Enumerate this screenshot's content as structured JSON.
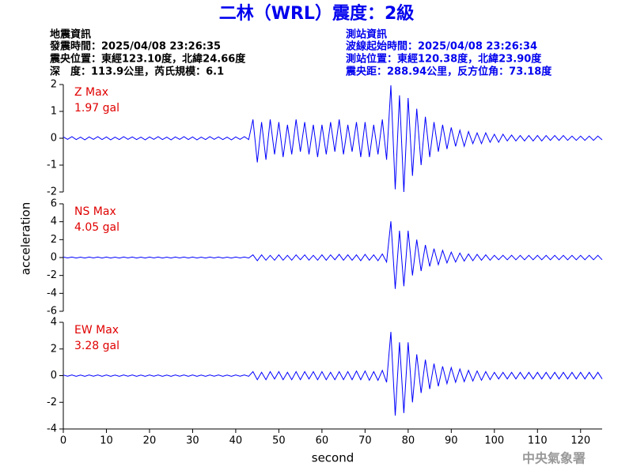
{
  "header": {
    "title": "二林（WRL）震度：2級",
    "left": [
      "地震資訊",
      "發震時間：2025/04/08 23:26:35",
      "震央位置：東經123.10度，北緯24.66度",
      "深　度：113.9公里，芮氏規模：6.1"
    ],
    "right": [
      "測站資訊",
      "波線起始時間：2025/04/08 23:26:34",
      "測站位置：東經120.38度，北緯23.90度",
      "震央距：288.94公里，反方位角：73.18度"
    ],
    "footer": "中央氣象署"
  },
  "chart_data": [
    {
      "type": "line",
      "label": "Z Max",
      "max_label": "1.97 gal",
      "color": "#0000ff",
      "ylim": [
        -2,
        2
      ],
      "yticks": [
        -2,
        -1,
        0,
        1,
        2
      ],
      "xlim": [
        0,
        125
      ],
      "x": [
        0,
        1,
        2,
        3,
        4,
        5,
        6,
        7,
        8,
        9,
        10,
        11,
        12,
        13,
        14,
        15,
        16,
        17,
        18,
        19,
        20,
        21,
        22,
        23,
        24,
        25,
        26,
        27,
        28,
        29,
        30,
        31,
        32,
        33,
        34,
        35,
        36,
        37,
        38,
        39,
        40,
        41,
        42,
        43,
        44,
        45,
        46,
        47,
        48,
        49,
        50,
        51,
        52,
        53,
        54,
        55,
        56,
        57,
        58,
        59,
        60,
        61,
        62,
        63,
        64,
        65,
        66,
        67,
        68,
        69,
        70,
        71,
        72,
        73,
        74,
        75,
        76,
        77,
        78,
        79,
        80,
        81,
        82,
        83,
        84,
        85,
        86,
        87,
        88,
        89,
        90,
        91,
        92,
        93,
        94,
        95,
        96,
        97,
        98,
        99,
        100,
        101,
        102,
        103,
        104,
        105,
        106,
        107,
        108,
        109,
        110,
        111,
        112,
        113,
        114,
        115,
        116,
        117,
        118,
        119,
        120,
        121,
        122,
        123,
        124,
        125
      ],
      "values": [
        0.05,
        -0.04,
        0.06,
        -0.05,
        0.04,
        -0.06,
        0.05,
        -0.04,
        0.06,
        -0.05,
        0.05,
        -0.06,
        0.04,
        -0.05,
        0.06,
        -0.04,
        0.05,
        -0.05,
        0.04,
        -0.06,
        0.05,
        -0.04,
        0.06,
        -0.05,
        0.04,
        -0.06,
        0.05,
        -0.04,
        0.06,
        -0.05,
        0.05,
        -0.06,
        0.04,
        -0.05,
        0.06,
        -0.04,
        0.05,
        -0.05,
        0.04,
        -0.06,
        0.05,
        -0.04,
        0.06,
        -0.05,
        0.7,
        -0.9,
        0.6,
        -0.8,
        0.7,
        -0.6,
        0.6,
        -0.7,
        0.5,
        -0.6,
        0.7,
        -0.5,
        0.6,
        -0.6,
        0.5,
        -0.7,
        0.5,
        -0.6,
        0.6,
        -0.5,
        0.7,
        -0.6,
        0.5,
        -0.5,
        0.6,
        -0.7,
        0.6,
        -0.7,
        0.5,
        -0.6,
        0.7,
        -0.8,
        1.97,
        -1.9,
        1.6,
        -2.0,
        1.5,
        -1.4,
        1.1,
        -1.0,
        0.8,
        -0.7,
        0.6,
        -0.5,
        0.5,
        -0.4,
        0.4,
        -0.3,
        0.3,
        -0.3,
        0.25,
        -0.2,
        0.2,
        -0.2,
        0.2,
        -0.15,
        0.15,
        -0.15,
        0.15,
        -0.1,
        0.12,
        -0.1,
        0.1,
        -0.1,
        0.1,
        -0.1,
        0.1,
        -0.1,
        0.1,
        -0.08,
        0.1,
        -0.08,
        0.1,
        -0.08,
        0.08,
        -0.08,
        0.08,
        -0.08,
        0.08,
        -0.08,
        0.08,
        -0.06
      ]
    },
    {
      "type": "line",
      "label": "NS Max",
      "max_label": "4.05 gal",
      "color": "#0000ff",
      "ylim": [
        -6,
        6
      ],
      "yticks": [
        -6,
        -4,
        -2,
        0,
        2,
        4,
        6
      ],
      "xlim": [
        0,
        125
      ],
      "ylabel": "acceleration",
      "x": [
        0,
        1,
        2,
        3,
        4,
        5,
        6,
        7,
        8,
        9,
        10,
        11,
        12,
        13,
        14,
        15,
        16,
        17,
        18,
        19,
        20,
        21,
        22,
        23,
        24,
        25,
        26,
        27,
        28,
        29,
        30,
        31,
        32,
        33,
        34,
        35,
        36,
        37,
        38,
        39,
        40,
        41,
        42,
        43,
        44,
        45,
        46,
        47,
        48,
        49,
        50,
        51,
        52,
        53,
        54,
        55,
        56,
        57,
        58,
        59,
        60,
        61,
        62,
        63,
        64,
        65,
        66,
        67,
        68,
        69,
        70,
        71,
        72,
        73,
        74,
        75,
        76,
        77,
        78,
        79,
        80,
        81,
        82,
        83,
        84,
        85,
        86,
        87,
        88,
        89,
        90,
        91,
        92,
        93,
        94,
        95,
        96,
        97,
        98,
        99,
        100,
        101,
        102,
        103,
        104,
        105,
        106,
        107,
        108,
        109,
        110,
        111,
        112,
        113,
        114,
        115,
        116,
        117,
        118,
        119,
        120,
        121,
        122,
        123,
        124,
        125
      ],
      "values": [
        0.05,
        -0.04,
        0.05,
        -0.05,
        0.04,
        -0.05,
        0.05,
        -0.04,
        0.05,
        -0.05,
        0.05,
        -0.05,
        0.04,
        -0.05,
        0.05,
        -0.04,
        0.05,
        -0.05,
        0.04,
        -0.05,
        0.05,
        -0.04,
        0.05,
        -0.05,
        0.04,
        -0.05,
        0.05,
        -0.04,
        0.05,
        -0.05,
        0.05,
        -0.05,
        0.04,
        -0.05,
        0.05,
        -0.04,
        0.05,
        -0.05,
        0.04,
        -0.05,
        0.05,
        -0.04,
        0.05,
        -0.05,
        0.3,
        -0.35,
        0.3,
        -0.3,
        0.25,
        -0.3,
        0.3,
        -0.3,
        0.25,
        -0.3,
        0.3,
        -0.25,
        0.3,
        -0.3,
        0.25,
        -0.3,
        0.3,
        -0.3,
        0.3,
        -0.25,
        0.35,
        -0.3,
        0.3,
        -0.3,
        0.3,
        -0.35,
        0.35,
        -0.3,
        0.3,
        -0.35,
        0.4,
        -0.5,
        4.05,
        -3.5,
        3.0,
        -3.2,
        3.0,
        -2.0,
        2.0,
        -1.5,
        1.4,
        -1.0,
        1.0,
        -0.8,
        0.8,
        -0.6,
        0.6,
        -0.5,
        0.5,
        -0.4,
        0.4,
        -0.35,
        0.35,
        -0.3,
        0.3,
        -0.3,
        0.25,
        -0.25,
        0.25,
        -0.25,
        0.25,
        -0.25,
        0.25,
        -0.25,
        0.25,
        -0.25,
        0.25,
        -0.25,
        0.25,
        -0.25,
        0.25,
        -0.25,
        0.25,
        -0.25,
        0.25,
        -0.25,
        0.25,
        -0.25,
        0.25,
        -0.25,
        0.25,
        -0.25
      ]
    },
    {
      "type": "line",
      "label": "EW Max",
      "max_label": "3.28 gal",
      "color": "#0000ff",
      "ylim": [
        -4,
        4
      ],
      "yticks": [
        -4,
        -2,
        0,
        2,
        4
      ],
      "xlim": [
        0,
        125
      ],
      "xticks": [
        0,
        10,
        20,
        30,
        40,
        50,
        60,
        70,
        80,
        90,
        100,
        110,
        120
      ],
      "xlabel": "second",
      "x": [
        0,
        1,
        2,
        3,
        4,
        5,
        6,
        7,
        8,
        9,
        10,
        11,
        12,
        13,
        14,
        15,
        16,
        17,
        18,
        19,
        20,
        21,
        22,
        23,
        24,
        25,
        26,
        27,
        28,
        29,
        30,
        31,
        32,
        33,
        34,
        35,
        36,
        37,
        38,
        39,
        40,
        41,
        42,
        43,
        44,
        45,
        46,
        47,
        48,
        49,
        50,
        51,
        52,
        53,
        54,
        55,
        56,
        57,
        58,
        59,
        60,
        61,
        62,
        63,
        64,
        65,
        66,
        67,
        68,
        69,
        70,
        71,
        72,
        73,
        74,
        75,
        76,
        77,
        78,
        79,
        80,
        81,
        82,
        83,
        84,
        85,
        86,
        87,
        88,
        89,
        90,
        91,
        92,
        93,
        94,
        95,
        96,
        97,
        98,
        99,
        100,
        101,
        102,
        103,
        104,
        105,
        106,
        107,
        108,
        109,
        110,
        111,
        112,
        113,
        114,
        115,
        116,
        117,
        118,
        119,
        120,
        121,
        122,
        123,
        124,
        125
      ],
      "values": [
        0.05,
        -0.04,
        0.05,
        -0.05,
        0.04,
        -0.05,
        0.05,
        -0.04,
        0.05,
        -0.05,
        0.05,
        -0.05,
        0.04,
        -0.05,
        0.05,
        -0.04,
        0.05,
        -0.05,
        0.04,
        -0.05,
        0.05,
        -0.04,
        0.05,
        -0.05,
        0.04,
        -0.05,
        0.05,
        -0.04,
        0.05,
        -0.05,
        0.05,
        -0.05,
        0.04,
        -0.05,
        0.05,
        -0.04,
        0.05,
        -0.05,
        0.04,
        -0.05,
        0.05,
        -0.04,
        0.05,
        -0.05,
        0.3,
        -0.3,
        0.25,
        -0.3,
        0.3,
        -0.25,
        0.3,
        -0.3,
        0.25,
        -0.3,
        0.3,
        -0.3,
        0.3,
        -0.25,
        0.3,
        -0.3,
        0.3,
        -0.3,
        0.25,
        -0.3,
        0.3,
        -0.3,
        0.3,
        -0.3,
        0.35,
        -0.3,
        0.35,
        -0.35,
        0.3,
        -0.35,
        0.4,
        -0.5,
        3.28,
        -3.0,
        2.5,
        -2.8,
        2.5,
        -2.0,
        1.6,
        -1.3,
        1.2,
        -1.0,
        0.9,
        -0.8,
        0.7,
        -0.6,
        0.6,
        -0.5,
        0.5,
        -0.45,
        0.4,
        -0.4,
        0.35,
        -0.35,
        0.3,
        -0.3,
        0.25,
        -0.25,
        0.25,
        -0.25,
        0.25,
        -0.25,
        0.25,
        -0.25,
        0.25,
        -0.25,
        0.25,
        -0.25,
        0.25,
        -0.25,
        0.25,
        -0.25,
        0.25,
        -0.25,
        0.25,
        -0.25,
        0.25,
        -0.25,
        0.25,
        -0.25,
        0.25,
        -0.25
      ]
    }
  ]
}
